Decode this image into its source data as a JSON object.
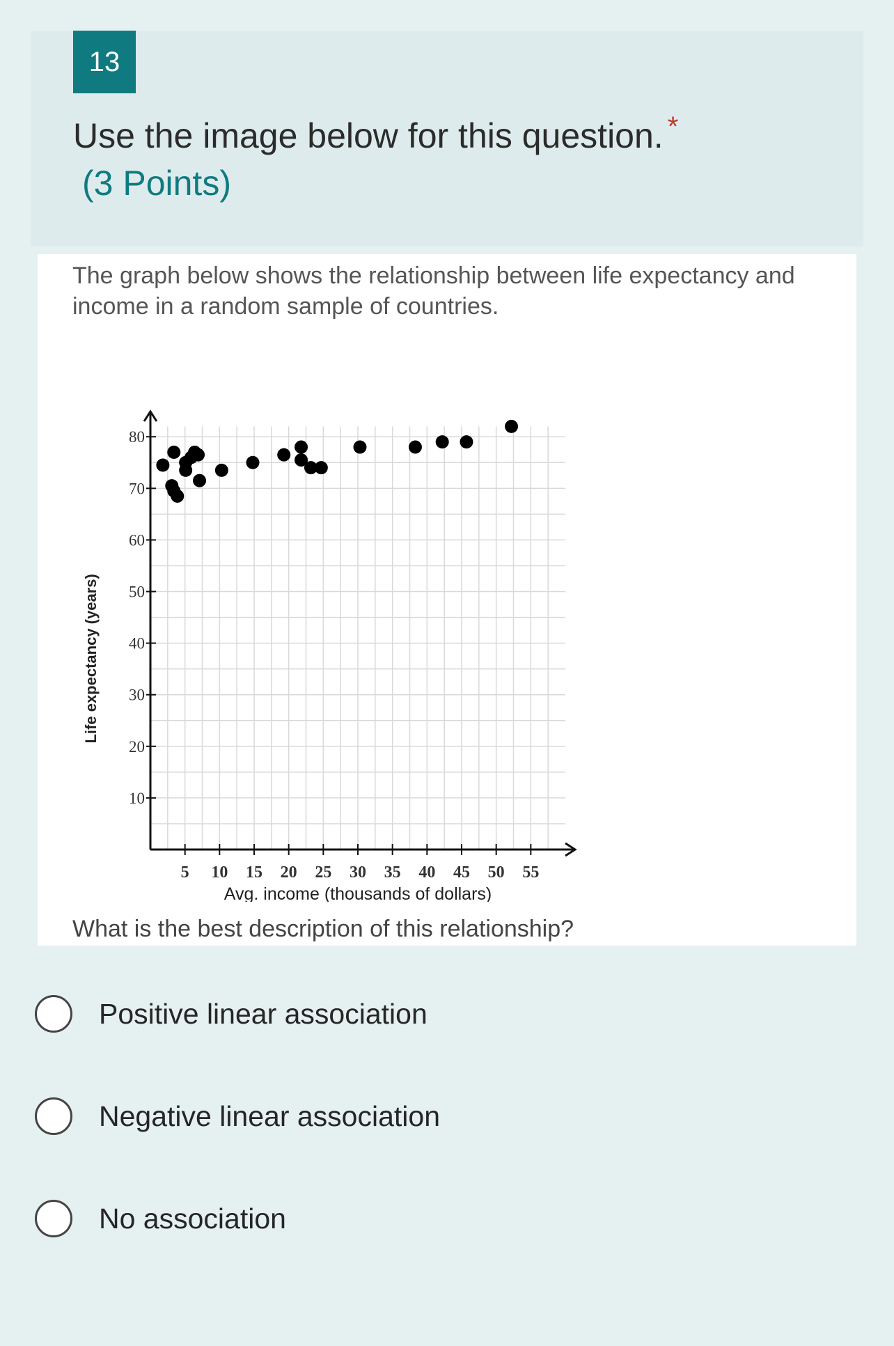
{
  "question": {
    "number": "13",
    "title": "Use the image below for this question.",
    "required_mark": "*",
    "points": "(3 Points)"
  },
  "image": {
    "intro": "The graph below shows the relationship between life expectancy and income in a random sample of countries.",
    "prompt": "What is the best description of this relationship?"
  },
  "chart_data": {
    "type": "scatter",
    "xlabel": "Avg. income (thousands of dollars)",
    "ylabel": "Life expectancy (years)",
    "xlim": [
      0,
      60
    ],
    "ylim": [
      0,
      83
    ],
    "x_ticks": [
      5,
      10,
      15,
      20,
      25,
      30,
      35,
      40,
      45,
      50,
      55
    ],
    "y_ticks": [
      10,
      20,
      30,
      40,
      50,
      60,
      70,
      80
    ],
    "grid": true,
    "points": [
      [
        1.8,
        74.5
      ],
      [
        3.4,
        77
      ],
      [
        3.1,
        70.5
      ],
      [
        3.4,
        69.5
      ],
      [
        3.9,
        68.5
      ],
      [
        5.1,
        75
      ],
      [
        5.1,
        73.5
      ],
      [
        5.9,
        76
      ],
      [
        6.4,
        77
      ],
      [
        6.9,
        76.5
      ],
      [
        7.1,
        71.5
      ],
      [
        10.3,
        73.5
      ],
      [
        14.8,
        75
      ],
      [
        19.3,
        76.5
      ],
      [
        21.8,
        78
      ],
      [
        21.8,
        75.5
      ],
      [
        23.2,
        74
      ],
      [
        24.7,
        74
      ],
      [
        30.3,
        78
      ],
      [
        38.3,
        78
      ],
      [
        42.2,
        79
      ],
      [
        45.7,
        79
      ],
      [
        52.2,
        82
      ]
    ]
  },
  "options": [
    {
      "label": "Positive linear association"
    },
    {
      "label": "Negative linear association"
    },
    {
      "label": "No association"
    }
  ],
  "colors": {
    "accent": "#0f7b80",
    "required": "#c0392b",
    "background": "#e5f0f1"
  }
}
